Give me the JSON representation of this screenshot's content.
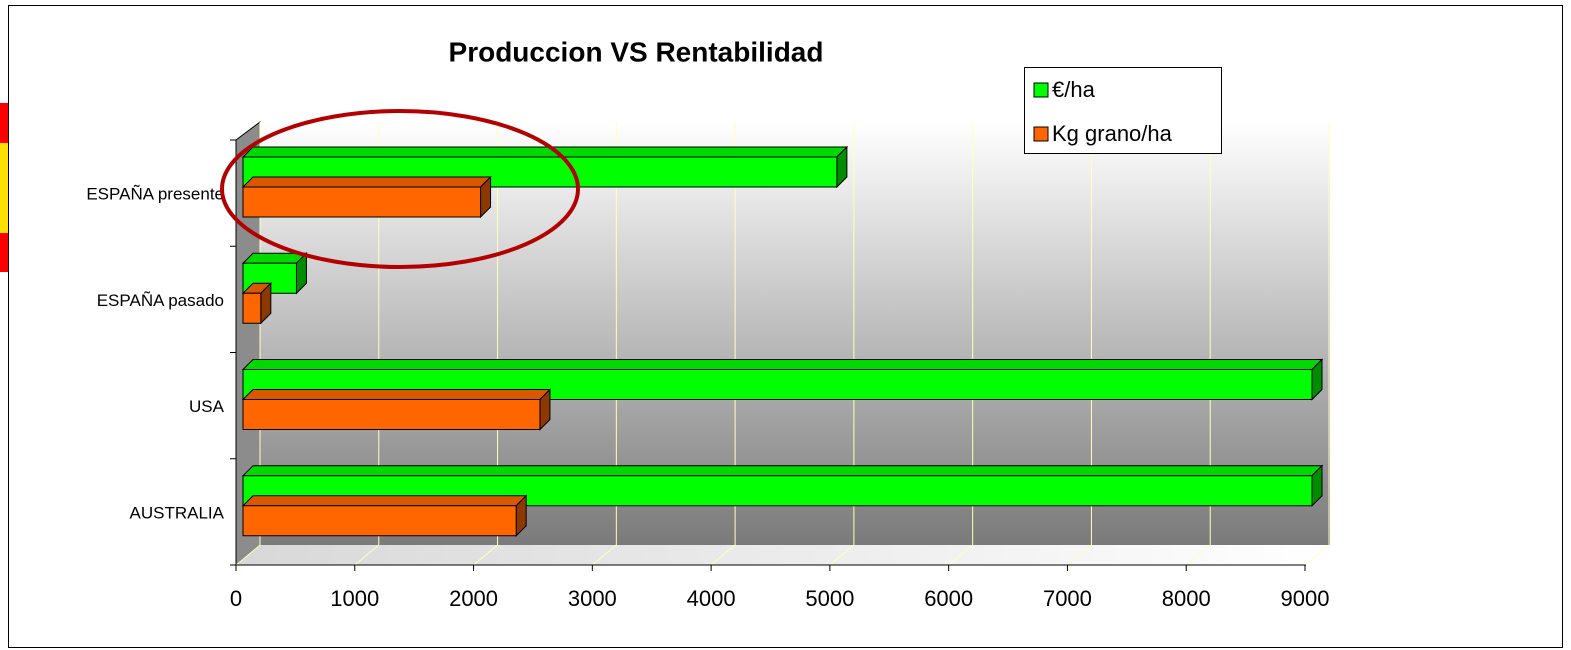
{
  "chart_data": {
    "type": "bar3d",
    "orientation": "horizontal",
    "title": "Produccion VS Rentabilidad",
    "categories": [
      "ESPAÑA presente",
      "ESPAÑA pasado",
      "USA",
      "AUSTRALIA"
    ],
    "series": [
      {
        "name": "€/ha",
        "color": "#00ff00",
        "values": [
          5000,
          450,
          9000,
          9000
        ]
      },
      {
        "name": "Kg grano/ha",
        "color": "#ff6600",
        "values": [
          2000,
          150,
          2500,
          2300
        ]
      }
    ],
    "xlim": [
      0,
      9000
    ],
    "xticks": [
      0,
      1000,
      2000,
      3000,
      4000,
      5000,
      6000,
      7000,
      8000,
      9000
    ],
    "grid": true,
    "legend": "top-right"
  }
}
